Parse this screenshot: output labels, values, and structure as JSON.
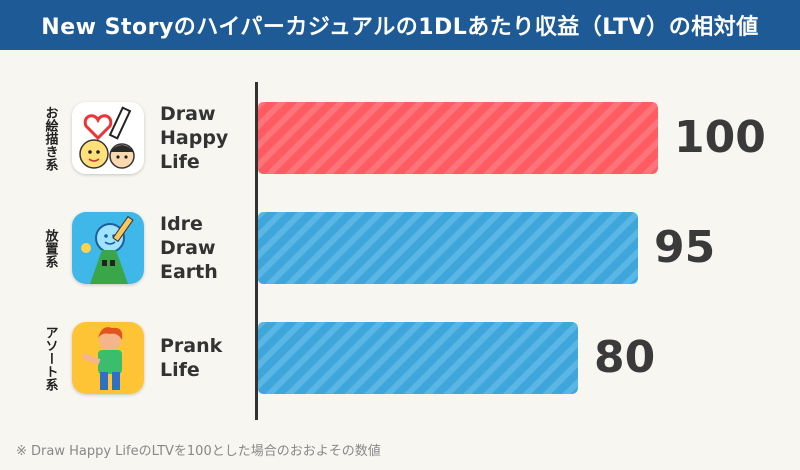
{
  "title": "New Storyのハイパーカジュアルの1DLあたり収益（LTV）の相対値",
  "footnote": "※ Draw Happy LifeのLTVを100とした場合のおおよその数値",
  "colors": {
    "title_bg": "#1d5a96",
    "highlight": "#ff5b62",
    "default": "#3fa6dc"
  },
  "chart_data": {
    "type": "bar",
    "orientation": "horizontal",
    "title": "New Storyのハイパーカジュアルの1DLあたり収益（LTV）の相対値",
    "xlim": [
      0,
      100
    ],
    "categories": [
      "Draw Happy Life",
      "Idre Draw Earth",
      "Prank Life"
    ],
    "values": [
      100,
      95,
      80
    ],
    "rows": [
      {
        "genre": "お絵描き系",
        "name_lines": [
          "Draw",
          "Happy",
          "Life"
        ],
        "value": 100,
        "value_label": "100",
        "color": "#ff5b62",
        "icon": "draw-happy-life-icon"
      },
      {
        "genre": "放置系",
        "name_lines": [
          "Idre",
          "Draw",
          "Earth"
        ],
        "value": 95,
        "value_label": "95",
        "color": "#3fa6dc",
        "icon": "idre-draw-earth-icon"
      },
      {
        "genre": "アソート系",
        "name_lines": [
          "Prank",
          "Life"
        ],
        "value": 80,
        "value_label": "80",
        "color": "#3fa6dc",
        "icon": "prank-life-icon"
      }
    ]
  }
}
